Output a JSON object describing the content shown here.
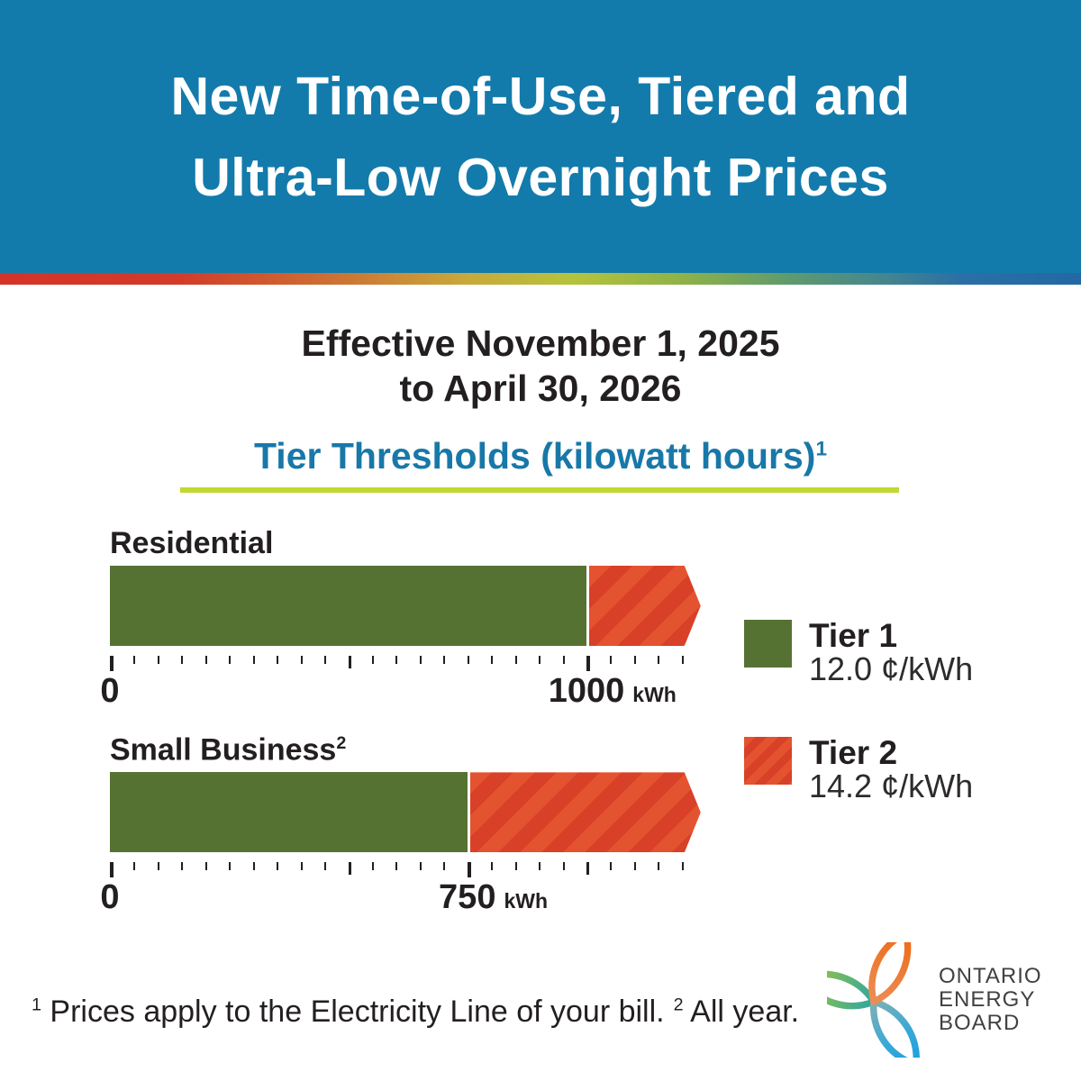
{
  "header": {
    "title_line1": "New Time-of-Use, Tiered and",
    "title_line2": "Ultra-Low Overnight Prices",
    "bg_color": "#137bab"
  },
  "effective": {
    "line1": "Effective November 1, 2025",
    "line2": "to April 30, 2026"
  },
  "section": {
    "title": "Tier Thresholds (kilowatt hours)",
    "superscript": "1",
    "title_color": "#1878a8",
    "underline_color": "#c3d830"
  },
  "chart_data": {
    "type": "bar",
    "title": "Tier Thresholds (kilowatt hours)",
    "unit": "kWh",
    "axis": {
      "min": 0,
      "max": 1200,
      "tick_step": 50
    },
    "series": [
      {
        "name": "Residential",
        "superscript": "",
        "tier1_threshold_kwh": 1000,
        "labeled_ticks": [
          0,
          1000
        ],
        "medium_ticks": [
          500
        ],
        "tier2_extends_beyond_threshold": true
      },
      {
        "name": "Small Business",
        "superscript": "2",
        "tier1_threshold_kwh": 750,
        "labeled_ticks": [
          0,
          750
        ],
        "medium_ticks": [
          500,
          1000
        ],
        "tier2_extends_beyond_threshold": true
      }
    ],
    "legend": [
      {
        "label": "Tier 1",
        "price": "12.0 ¢/kWh",
        "swatch": "solid"
      },
      {
        "label": "Tier 2",
        "price": "14.2 ¢/kWh",
        "swatch": "striped"
      }
    ],
    "colors": {
      "tier1_green": "#567233",
      "tier2_orange": "#e4532f",
      "tier2_stripe_dark": "#d84027",
      "tick_color": "#231f20"
    },
    "legend_position": "right"
  },
  "footnote": {
    "sup1": "1",
    "text1": "Prices apply to the Electricity Line of your bill.",
    "sup2": "2",
    "text2": "All year."
  },
  "logo": {
    "line1": "ONTARIO",
    "line2": "ENERGY",
    "line3": "BOARD"
  }
}
